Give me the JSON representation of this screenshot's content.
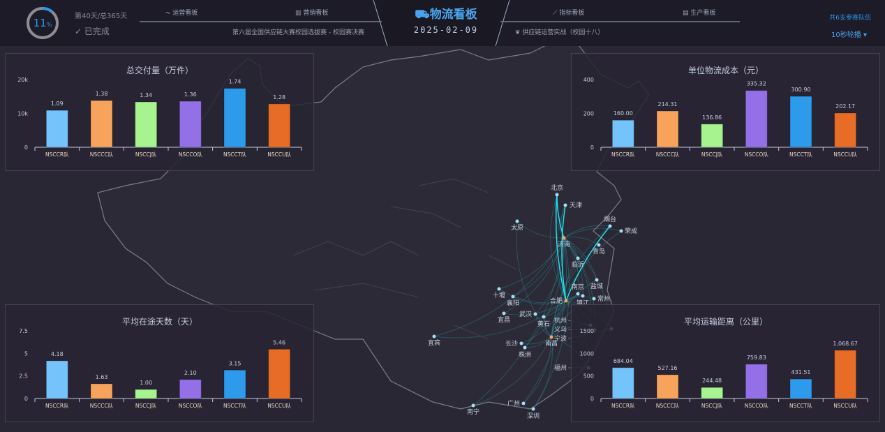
{
  "header": {
    "progress_percent": 11,
    "progress_label": "11",
    "progress_unit": "%",
    "day_text": "第40天/总365天",
    "status_text": "已完成",
    "nav": [
      {
        "label": "运营看板",
        "icon": "pulse-icon"
      },
      {
        "label": "营销看板",
        "icon": "bar-chart-icon"
      },
      {
        "label": "指标看板",
        "icon": "line-chart-icon"
      },
      {
        "label": "生产看板",
        "icon": "document-icon"
      }
    ],
    "left_subtitle": "第六届全国供应链大赛校园选拔赛 - 校园赛决赛",
    "right_subtitle": "供应链运营实战（校园十八）",
    "title": "物流看板",
    "title_icon": "truck-icon",
    "date": "2025-02-09",
    "teams_text": "共6支参赛队伍",
    "rotate_label": "10秒轮播"
  },
  "colors": {
    "accent": "#2e95e8",
    "bars": [
      "#74c3fb",
      "#f7a35c",
      "#a6f38f",
      "#9370e6",
      "#2e9aeb",
      "#e76d27"
    ],
    "hub": "#f7a35c",
    "city": "#a6e0f5",
    "route": "#2ab7c4"
  },
  "map": {
    "cities": [
      "北京",
      "天津",
      "太原",
      "济南",
      "烟台",
      "荣成",
      "青岛",
      "临沂",
      "盐城",
      "十堰",
      "襄阳",
      "宜昌",
      "合肥",
      "南京",
      "镇江",
      "常州",
      "武汉",
      "黄石",
      "杭州",
      "宁波",
      "义乌",
      "宜宾",
      "长沙",
      "株洲",
      "南昌",
      "福州",
      "南宁",
      "广州",
      "深圳"
    ],
    "hubs": [
      "济南",
      "合肥",
      "南昌"
    ]
  },
  "chart_data": [
    {
      "type": "bar",
      "title": "总交付量（万件）",
      "categories": [
        "NSCCR队",
        "NSCCC队",
        "NSCCJ队",
        "NSCCO队",
        "NSCCT队",
        "NSCCU队"
      ],
      "values": [
        10900,
        13800,
        13400,
        13600,
        17400,
        12800
      ],
      "data_labels": [
        "1.09",
        "1.38",
        "1.34",
        "1.36",
        "1.74",
        "1.28"
      ],
      "yticks": [
        "0",
        "10k",
        "20k"
      ],
      "ylim": [
        0,
        20000
      ]
    },
    {
      "type": "bar",
      "title": "单位物流成本（元）",
      "categories": [
        "NSCCR队",
        "NSCCC队",
        "NSCCJ队",
        "NSCCO队",
        "NSCCT队",
        "NSCCU队"
      ],
      "values": [
        160.0,
        214.31,
        136.86,
        335.32,
        300.9,
        202.17
      ],
      "data_labels": [
        "160.00",
        "214.31",
        "136.86",
        "335.32",
        "300.90",
        "202.17"
      ],
      "yticks": [
        "0",
        "200",
        "400"
      ],
      "ylim": [
        0,
        400
      ]
    },
    {
      "type": "bar",
      "title": "平均在途天数（天）",
      "categories": [
        "NSCCR队",
        "NSCCC队",
        "NSCCJ队",
        "NSCCO队",
        "NSCCT队",
        "NSCCU队"
      ],
      "values": [
        4.18,
        1.63,
        1.0,
        2.1,
        3.15,
        5.46
      ],
      "data_labels": [
        "4.18",
        "1.63",
        "1.00",
        "2.10",
        "3.15",
        "5.46"
      ],
      "yticks": [
        "0",
        "2.5",
        "5",
        "7.5"
      ],
      "ylim": [
        0,
        7.5
      ]
    },
    {
      "type": "bar",
      "title": "平均运输距离（公里）",
      "categories": [
        "NSCCR队",
        "NSCCC队",
        "NSCCJ队",
        "NSCCO队",
        "NSCCT队",
        "NSCCU队"
      ],
      "values": [
        684.04,
        527.16,
        244.48,
        759.83,
        431.51,
        1068.67
      ],
      "data_labels": [
        "684.04",
        "527.16",
        "244.48",
        "759.83",
        "431.51",
        "1,068.67"
      ],
      "yticks": [
        "0",
        "500",
        "1000",
        "1500"
      ],
      "ylim": [
        0,
        1500
      ]
    }
  ]
}
